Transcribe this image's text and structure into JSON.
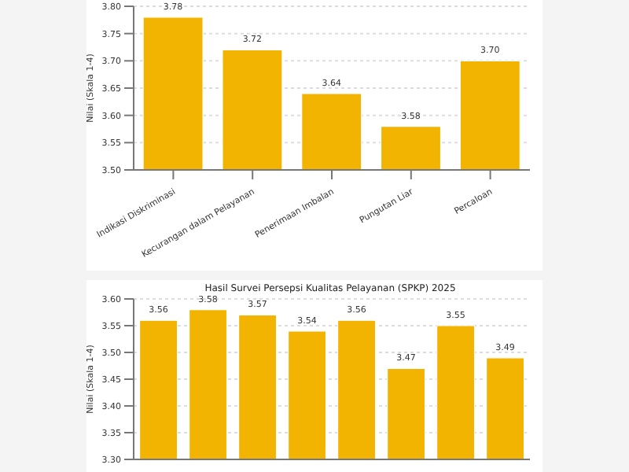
{
  "chart_data": [
    {
      "type": "bar",
      "ylabel": "Nilai (Skala 1-4)",
      "categories": [
        "Indikasi Diskriminasi",
        "Kecurangan dalam Pelayanan",
        "Penerimaan Imbalan",
        "Pungutan Liar",
        "Percaloan"
      ],
      "values": [
        3.78,
        3.72,
        3.64,
        3.58,
        3.7
      ],
      "value_labels": [
        "3.78",
        "3.72",
        "3.64",
        "3.58",
        "3.70"
      ],
      "color": "#f2b400",
      "ylim": [
        3.5,
        3.8
      ],
      "yticks": [
        {
          "value": 3.5,
          "label": "3.50"
        },
        {
          "value": 3.55,
          "label": "3.55"
        },
        {
          "value": 3.6,
          "label": "3.60"
        },
        {
          "value": 3.65,
          "label": "3.65"
        },
        {
          "value": 3.7,
          "label": "3.70"
        },
        {
          "value": 3.75,
          "label": "3.75"
        },
        {
          "value": 3.8,
          "label": "3.80"
        }
      ],
      "grid": "y"
    },
    {
      "type": "bar",
      "title": "Hasil Survei Persepsi Kualitas Pelayanan (SPKP) 2025",
      "ylabel": "Nilai (Skala 1-4)",
      "categories": [
        null,
        null,
        null,
        null,
        null,
        null,
        null,
        null
      ],
      "values": [
        3.56,
        3.58,
        3.57,
        3.54,
        3.56,
        3.47,
        3.55,
        3.49
      ],
      "color": "#f2b400",
      "ylim": [
        3.3,
        3.6
      ],
      "yticks": [
        {
          "value": 3.3,
          "label": "3.30"
        },
        {
          "value": 3.35,
          "label": "3.35"
        },
        {
          "value": 3.4,
          "label": "3.40"
        },
        {
          "value": 3.45,
          "label": "3.45"
        },
        {
          "value": 3.5,
          "label": "3.50"
        },
        {
          "value": 3.55,
          "label": "3.55"
        },
        {
          "value": 3.6,
          "label": "3.60"
        }
      ],
      "grid": "y",
      "data_labels": true
    }
  ]
}
